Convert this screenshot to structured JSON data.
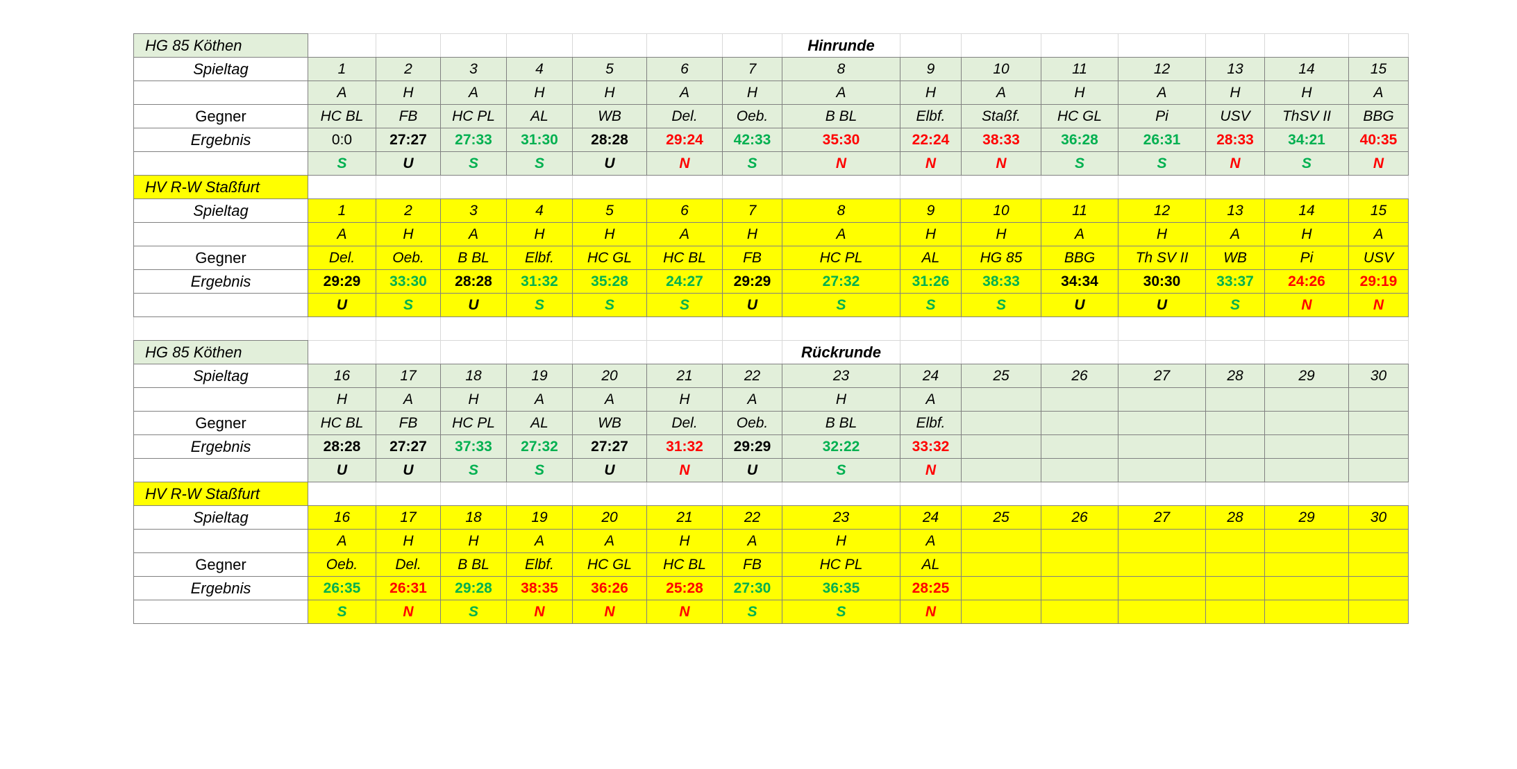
{
  "colors": {
    "section_fill_green": "#e2efda",
    "section_fill_yellow": "#ffff00",
    "win_text": "#00b050",
    "draw_text": "#000000",
    "loss_text": "#ff0000"
  },
  "table": {
    "row_labels": {
      "spieltag": "Spieltag",
      "blank": "",
      "gegner": "Gegner",
      "ergebnis": "Ergebnis"
    },
    "sections": [
      {
        "team": "HG 85 Köthen",
        "round": "Hinrunde",
        "fill": "green",
        "matchdays": [
          "1",
          "2",
          "3",
          "4",
          "5",
          "6",
          "7",
          "8",
          "9",
          "10",
          "11",
          "12",
          "13",
          "14",
          "15"
        ],
        "venues": [
          "A",
          "H",
          "A",
          "H",
          "H",
          "A",
          "H",
          "A",
          "H",
          "A",
          "H",
          "A",
          "H",
          "H",
          "A"
        ],
        "opponents": [
          "HC BL",
          "FB",
          "HC PL",
          "AL",
          "WB",
          "Del.",
          "Oeb.",
          "B BL",
          "Elbf.",
          "Staßf.",
          "HC GL",
          "Pi",
          "USV",
          "ThSV II",
          "BBG"
        ],
        "results": [
          "0:0",
          "27:27",
          "27:33",
          "31:30",
          "28:28",
          "29:24",
          "42:33",
          "35:30",
          "22:24",
          "38:33",
          "36:28",
          "26:31",
          "28:33",
          "34:21",
          "40:35"
        ],
        "result_colors": [
          "black",
          "black",
          "green",
          "green",
          "black",
          "red",
          "green",
          "red",
          "red",
          "red",
          "green",
          "green",
          "red",
          "green",
          "red"
        ],
        "result_bold": [
          false,
          true,
          true,
          true,
          true,
          true,
          true,
          true,
          true,
          true,
          true,
          true,
          true,
          true,
          true
        ],
        "outcomes": [
          "S",
          "U",
          "S",
          "S",
          "U",
          "N",
          "S",
          "N",
          "N",
          "N",
          "S",
          "S",
          "N",
          "S",
          "N"
        ]
      },
      {
        "team": "HV R-W Staßfurt",
        "round": "",
        "fill": "yellow",
        "matchdays": [
          "1",
          "2",
          "3",
          "4",
          "5",
          "6",
          "7",
          "8",
          "9",
          "10",
          "11",
          "12",
          "13",
          "14",
          "15"
        ],
        "venues": [
          "A",
          "H",
          "A",
          "H",
          "H",
          "A",
          "H",
          "A",
          "H",
          "H",
          "A",
          "H",
          "A",
          "H",
          "A"
        ],
        "opponents": [
          "Del.",
          "Oeb.",
          "B BL",
          "Elbf.",
          "HC GL",
          "HC BL",
          "FB",
          "HC PL",
          "AL",
          "HG 85",
          "BBG",
          "Th SV II",
          "WB",
          "Pi",
          "USV"
        ],
        "results": [
          "29:29",
          "33:30",
          "28:28",
          "31:32",
          "35:28",
          "24:27",
          "29:29",
          "27:32",
          "31:26",
          "38:33",
          "34:34",
          "30:30",
          "33:37",
          "24:26",
          "29:19"
        ],
        "result_colors": [
          "black",
          "green",
          "black",
          "green",
          "green",
          "green",
          "black",
          "green",
          "green",
          "green",
          "black",
          "black",
          "green",
          "red",
          "red"
        ],
        "result_bold": [
          true,
          true,
          true,
          true,
          true,
          true,
          true,
          true,
          true,
          true,
          true,
          true,
          true,
          true,
          true
        ],
        "outcomes": [
          "U",
          "S",
          "U",
          "S",
          "S",
          "S",
          "U",
          "S",
          "S",
          "S",
          "U",
          "U",
          "S",
          "N",
          "N"
        ]
      },
      {
        "team": "HG 85 Köthen",
        "round": "Rückrunde",
        "fill": "green",
        "matchdays": [
          "16",
          "17",
          "18",
          "19",
          "20",
          "21",
          "22",
          "23",
          "24",
          "25",
          "26",
          "27",
          "28",
          "29",
          "30"
        ],
        "venues": [
          "H",
          "A",
          "H",
          "A",
          "A",
          "H",
          "A",
          "H",
          "A",
          "",
          "",
          "",
          "",
          "",
          ""
        ],
        "opponents": [
          "HC BL",
          "FB",
          "HC PL",
          "AL",
          "WB",
          "Del.",
          "Oeb.",
          "B BL",
          "Elbf.",
          "",
          "",
          "",
          "",
          "",
          ""
        ],
        "results": [
          "28:28",
          "27:27",
          "37:33",
          "27:32",
          "27:27",
          "31:32",
          "29:29",
          "32:22",
          "33:32",
          "",
          "",
          "",
          "",
          "",
          ""
        ],
        "result_colors": [
          "black",
          "black",
          "green",
          "green",
          "black",
          "red",
          "black",
          "green",
          "red",
          "black",
          "black",
          "black",
          "black",
          "black",
          "black"
        ],
        "result_bold": [
          true,
          true,
          true,
          true,
          true,
          true,
          true,
          true,
          true,
          true,
          true,
          true,
          true,
          true,
          true
        ],
        "outcomes": [
          "U",
          "U",
          "S",
          "S",
          "U",
          "N",
          "U",
          "S",
          "N",
          "",
          "",
          "",
          "",
          "",
          ""
        ]
      },
      {
        "team": "HV R-W Staßfurt",
        "round": "",
        "fill": "yellow",
        "matchdays": [
          "16",
          "17",
          "18",
          "19",
          "20",
          "21",
          "22",
          "23",
          "24",
          "25",
          "26",
          "27",
          "28",
          "29",
          "30"
        ],
        "venues": [
          "A",
          "H",
          "H",
          "A",
          "A",
          "H",
          "A",
          "H",
          "A",
          "",
          "",
          "",
          "",
          "",
          ""
        ],
        "opponents": [
          "Oeb.",
          "Del.",
          "B BL",
          "Elbf.",
          "HC GL",
          "HC BL",
          "FB",
          "HC PL",
          "AL",
          "",
          "",
          "",
          "",
          "",
          ""
        ],
        "results": [
          "26:35",
          "26:31",
          "29:28",
          "38:35",
          "36:26",
          "25:28",
          "27:30",
          "36:35",
          "28:25",
          "",
          "",
          "",
          "",
          "",
          ""
        ],
        "result_colors": [
          "green",
          "red",
          "green",
          "red",
          "red",
          "red",
          "green",
          "green",
          "red",
          "black",
          "black",
          "black",
          "black",
          "black",
          "black"
        ],
        "result_bold": [
          true,
          true,
          true,
          true,
          true,
          true,
          true,
          true,
          true,
          true,
          true,
          true,
          true,
          true,
          true
        ],
        "outcomes": [
          "S",
          "N",
          "S",
          "N",
          "N",
          "N",
          "S",
          "S",
          "N",
          "",
          "",
          "",
          "",
          "",
          ""
        ]
      }
    ]
  }
}
